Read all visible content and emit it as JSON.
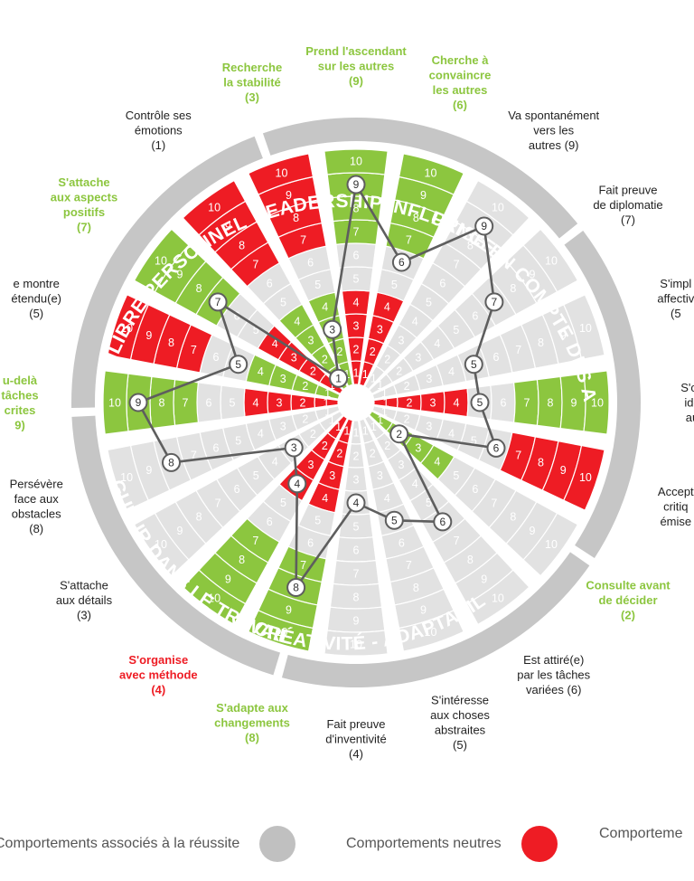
{
  "colors": {
    "success": "#8cc63f",
    "neutral": "#e2e2e2",
    "negative": "#ee1c24",
    "ring": "#c6c6c6",
    "neutral_dot": "#c0c0c0",
    "line": "#5e5e5e",
    "success_text": "#8cc63f",
    "negative_text": "#ee1c24"
  },
  "chart_data": {
    "type": "radial-bar",
    "levels": [
      1,
      2,
      3,
      4,
      5,
      6,
      7,
      8,
      9,
      10
    ],
    "groups": [
      {
        "name": "LEADERSHIP INFLUENCE"
      },
      {
        "name": "PRISE EN COMPTE DES AUTRES"
      },
      {
        "name": "CRÉATIVITÉ - ADAPTABILITÉ"
      },
      {
        "name": "RIGUEUR DANS LE TRAVAIL"
      },
      {
        "name": "ÉQUILIBRE PERSONNEL"
      }
    ],
    "dimensions": [
      {
        "label": [
          "Prend l'ascendant",
          "sur les autres",
          "(9)"
        ],
        "score": 9,
        "zone": "high",
        "category": "success"
      },
      {
        "label": [
          "Cherche à",
          "convaincre",
          "les autres",
          "(6)"
        ],
        "score": 6,
        "zone": "high",
        "category": "success"
      },
      {
        "label": [
          "Va spontanément",
          "vers les",
          "autres (9)"
        ],
        "score": 9,
        "zone": "none",
        "category": "neutral"
      },
      {
        "label": [
          "Fait preuve",
          "de diplomatie",
          "(7)"
        ],
        "score": 7,
        "zone": "none",
        "category": "neutral"
      },
      {
        "label": [
          "S'impl",
          "affectiv",
          "(5"
        ],
        "score": 5,
        "zone": "none",
        "category": "neutral"
      },
      {
        "label": [
          "S'ou",
          "idé",
          "au"
        ],
        "score": 5,
        "zone": "both",
        "category": "neutral"
      },
      {
        "label": [
          "Accept",
          "critiq",
          "émise"
        ],
        "score": 6,
        "zone": "none",
        "category": "neutral"
      },
      {
        "label": [
          "Consulte avant",
          "de décider",
          "(2)"
        ],
        "score": 2,
        "zone": "low",
        "category": "success"
      },
      {
        "label": [
          "Est attiré(e)",
          "par les tâches",
          "variées (6)"
        ],
        "score": 6,
        "zone": "none",
        "category": "neutral"
      },
      {
        "label": [
          "S'intéresse",
          "aux choses",
          "abstraites",
          "(5)"
        ],
        "score": 5,
        "zone": "none",
        "category": "neutral"
      },
      {
        "label": [
          "Fait preuve",
          "d'inventivité",
          "(4)"
        ],
        "score": 4,
        "zone": "none",
        "category": "neutral"
      },
      {
        "label": [
          "S'adapte aux",
          "changements",
          "(8)"
        ],
        "score": 8,
        "zone": "high",
        "category": "success"
      },
      {
        "label": [
          "S'organise",
          "avec méthode",
          "(4)"
        ],
        "score": 4,
        "zone": "low",
        "category": "negative"
      },
      {
        "label": [
          "S'attache",
          "aux détails",
          "(3)"
        ],
        "score": 3,
        "zone": "none",
        "category": "neutral"
      },
      {
        "label": [
          "Persévère",
          "face aux",
          "obstacles",
          "(8)"
        ],
        "score": 8,
        "zone": "none",
        "category": "neutral"
      },
      {
        "label": [
          "u-delà",
          "tâches",
          "crites",
          "9)"
        ],
        "score": 9,
        "zone": "both",
        "category": "success"
      },
      {
        "label": [
          "e montre",
          "étendu(e)",
          "(5)"
        ],
        "score": 5,
        "zone": "both",
        "category": "neutral"
      },
      {
        "label": [
          "S'attache",
          "aux aspects",
          "positifs",
          "(7)"
        ],
        "score": 7,
        "zone": "high",
        "category": "success"
      },
      {
        "label": [
          "Contrôle ses",
          "émotions",
          "(1)"
        ],
        "score": 1,
        "zone": "low",
        "category": "neutral"
      },
      {
        "label": [
          "Recherche",
          "la stabilité",
          "(3)"
        ],
        "score": 3,
        "zone": "both",
        "category": "success"
      }
    ],
    "legend": [
      {
        "label": "Comportements associés à la réussite",
        "color": "#8cc63f"
      },
      {
        "label": "Comportements neutres",
        "color": "#c0c0c0"
      },
      {
        "label": "Comporteme",
        "color": "#ee1c24"
      }
    ]
  }
}
